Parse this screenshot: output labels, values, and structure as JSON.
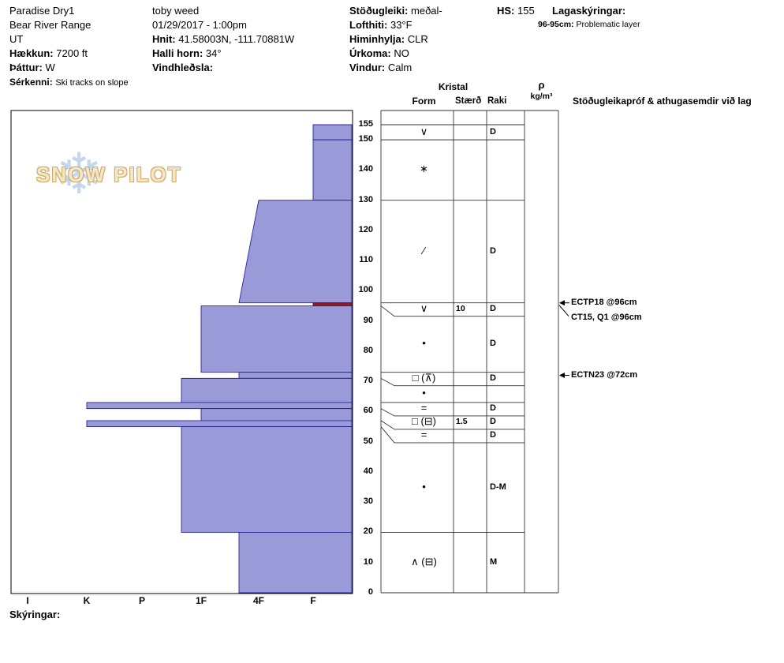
{
  "header": {
    "pit_name": "Paradise Dry1",
    "range": "Bear River Range",
    "state": "UT",
    "elevation_label": "Hækkun:",
    "elevation_value": "7200 ft",
    "aspect_label": "Þáttur:",
    "aspect_value": "W",
    "notes_label": "Sérkenni:",
    "notes_value": "Ski tracks on slope",
    "observer": "toby weed",
    "datetime": "01/29/2017 - 1:00pm",
    "coords_label": "Hnit:",
    "coords_value": "41.58003N, -111.70881W",
    "slope_label": "Halli horn:",
    "slope_value": "34°",
    "windloading_label": "Vindhleðsla:",
    "windloading_value": "",
    "stability_label": "Stöðugleiki:",
    "stability_value": "meðal-",
    "airtemp_label": "Lofthiti:",
    "airtemp_value": "33°F",
    "sky_label": "Himinhylja:",
    "sky_value": "CLR",
    "precip_label": "Úrkoma:",
    "precip_value": "NO",
    "wind_label": "Vindur:",
    "wind_value": "Calm",
    "hs_label": "HS:",
    "hs_value": "155",
    "layer_notes_label": "Lagaskýringar:",
    "layer_note_depth": "96-95cm:",
    "layer_note_text": "Problematic layer"
  },
  "table_header": {
    "kristal": "Kristal",
    "form": "Form",
    "size": "Stærð",
    "wetness": "Raki",
    "density_symbol": "ρ",
    "density_unit": "kg/m³",
    "tests": "Stöðugleikapróf & athugasemdir við lag"
  },
  "footer": {
    "notes_label": "Skýringar:"
  },
  "logo": {
    "flake": "❄",
    "text": "SNOW PILOT"
  },
  "colors": {
    "bar_fill": "#9a9ad8",
    "bar_stroke": "#26269b",
    "problem_fill": "#8b1c2e",
    "problem_stroke": "#58101d"
  },
  "chart_data": {
    "type": "bar",
    "subtype": "snow-profile-hardness",
    "title": "Paradise Dry1 snow profile",
    "hs_cm": 155,
    "depth_ticks": [
      155,
      150,
      140,
      130,
      120,
      110,
      100,
      90,
      80,
      70,
      60,
      50,
      40,
      30,
      20,
      10,
      0
    ],
    "hardness_ticks": [
      "I",
      "K",
      "P",
      "1F",
      "4F",
      "F"
    ],
    "legend_note": "bars extend left toward harder snow; depth 0 at bottom",
    "layers": [
      {
        "top_cm": 155,
        "bottom_cm": 150,
        "hardness": "F",
        "form": "∨",
        "size_mm": "",
        "wetness": "D",
        "problematic": false
      },
      {
        "top_cm": 150,
        "bottom_cm": 130,
        "hardness": "F",
        "form": "∗",
        "size_mm": "",
        "wetness": "",
        "problematic": false
      },
      {
        "top_cm": 130,
        "bottom_cm": 96,
        "hardness_top": "4F",
        "hardness_bottom": "4F+",
        "form": "∕",
        "size_mm": "",
        "wetness": "D",
        "problematic": false
      },
      {
        "top_cm": 96,
        "bottom_cm": 95,
        "hardness": "F",
        "form": "∨",
        "size_mm": "10",
        "wetness": "D",
        "problematic": true
      },
      {
        "top_cm": 95,
        "bottom_cm": 73,
        "hardness": "1F",
        "form": "•",
        "size_mm": "",
        "wetness": "D",
        "problematic": false
      },
      {
        "top_cm": 73,
        "bottom_cm": 71,
        "hardness": "4F+",
        "form": "□ (⊼)",
        "size_mm": "",
        "wetness": "D",
        "problematic": false
      },
      {
        "top_cm": 71,
        "bottom_cm": 63,
        "hardness": "1F+",
        "form": "•",
        "size_mm": "",
        "wetness": "",
        "problematic": false
      },
      {
        "top_cm": 63,
        "bottom_cm": 61,
        "hardness": "K",
        "form": "=",
        "size_mm": "",
        "wetness": "D",
        "problematic": false
      },
      {
        "top_cm": 61,
        "bottom_cm": 57,
        "hardness": "1F",
        "form": "□ (⊟)",
        "size_mm": "1.5",
        "wetness": "D",
        "problematic": false
      },
      {
        "top_cm": 57,
        "bottom_cm": 55,
        "hardness": "K",
        "form": "=",
        "size_mm": "",
        "wetness": "D",
        "problematic": false
      },
      {
        "top_cm": 55,
        "bottom_cm": 20,
        "hardness": "1F+",
        "form": "•",
        "size_mm": "",
        "wetness": "D-M",
        "problematic": false
      },
      {
        "top_cm": 20,
        "bottom_cm": 0,
        "hardness": "4F+",
        "form": "∧ (⊟)",
        "size_mm": "",
        "wetness": "M",
        "problematic": false
      }
    ],
    "tests": [
      {
        "label": "ECTP18 @96cm",
        "depth_cm": 96,
        "stack": 0
      },
      {
        "label": "CT15, Q1 @96cm",
        "depth_cm": 96,
        "stack": 1
      },
      {
        "label": "ECTN23 @72cm",
        "depth_cm": 72,
        "stack": 0
      }
    ],
    "density_measurements": []
  }
}
